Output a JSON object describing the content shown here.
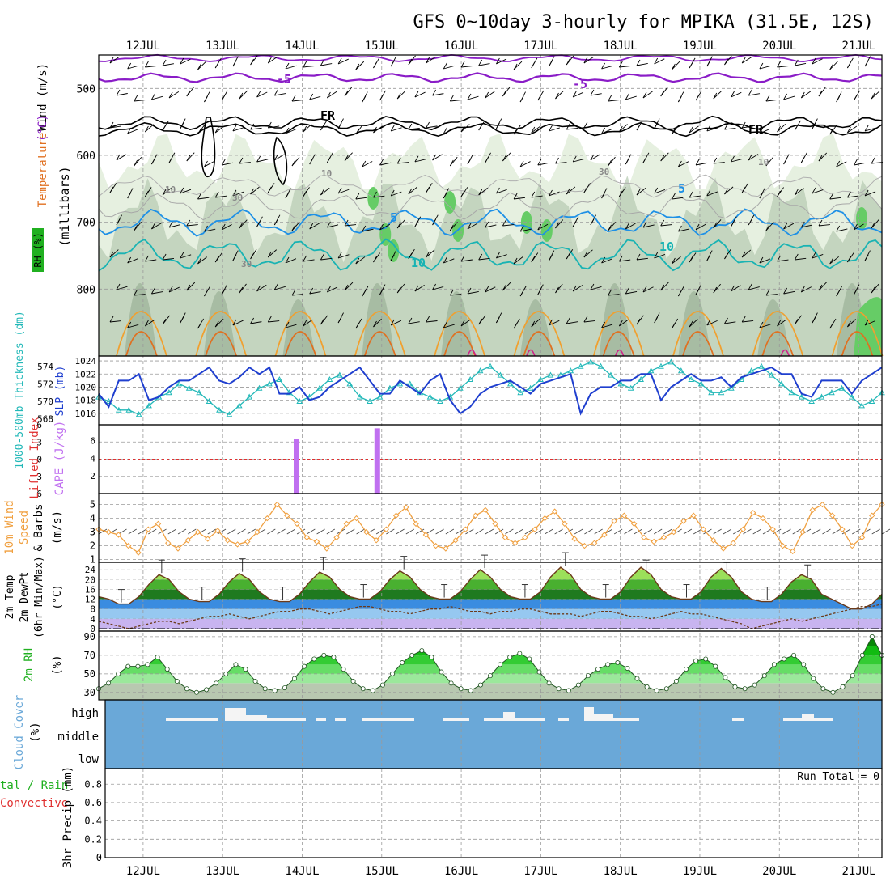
{
  "title": "GFS 0~10day 3-hourly for MPIKA (31.5E, 12S)",
  "colors": {
    "frame": "#000000",
    "grid": "#9a9a9a",
    "rh_light": "#e6f0e0",
    "rh_mid": "#b8ccb4",
    "rh_dark": "#8fa88d",
    "rh_green": "#66cc66",
    "purple": "#8a1cc7",
    "cyan_blue": "#1e90e6",
    "teal": "#19b3b3",
    "orange": "#f0a030",
    "dark_orange": "#e07020",
    "magenta": "#d0208a",
    "slp": "#1f3fcf",
    "thickness": "#22b8b8",
    "cape": "#c070f0",
    "lifted": "#e03030",
    "wind": "#f0a040",
    "temp_line": "#6b3a1a",
    "sky": "#6aa8d8",
    "cloud": "#f4f4f4",
    "green_label": "#20b020"
  },
  "x_axis": {
    "day_labels": [
      "12JUL",
      "13JUL",
      "14JUL",
      "15JUL",
      "16JUL",
      "17JUL",
      "18JUL",
      "19JUL",
      "20JUL",
      "21JUL"
    ],
    "start": 0,
    "end": 9.7,
    "first_day": 0.55
  },
  "panels": {
    "upper": {
      "ylabel_parts": [
        "Wind (m/s)",
        "Temperature",
        "(°C)",
        "RH (%)"
      ],
      "ylabel2": "(millibars)",
      "ticks": [
        500,
        600,
        700,
        800
      ],
      "contour_labels": [
        "-5",
        "-5",
        "FR",
        "FR",
        "5",
        "5",
        "10",
        "10",
        "10",
        "30",
        "30",
        "10",
        "30",
        "10"
      ]
    },
    "slp": {
      "ylabel_left": "1000-500mb Thickness (dm)",
      "ylabel_right": "SLP (mb)",
      "ticks_slp": [
        "1024",
        "1022",
        "1020",
        "1018",
        "1016"
      ],
      "ticks_thk": [
        "574",
        "572",
        "570",
        "568"
      ]
    },
    "cape": {
      "ylabel_left": "Lifted Index",
      "ylabel_right": "CAPE (J/kg)",
      "ticks_li": [
        "6",
        "-3",
        "0",
        "3",
        "6"
      ],
      "ticks_cape": [
        "6",
        "4",
        "2"
      ]
    },
    "wind": {
      "ylabel": [
        "10m Wind",
        "Speed",
        "& Barbs",
        "(m/s)"
      ],
      "ticks": [
        "5",
        "4",
        "3",
        "2",
        "1"
      ]
    },
    "temp": {
      "ylabel": [
        "2m Temp",
        "2m DewPt",
        "(6hr Min/Max)",
        "(°C)"
      ],
      "ticks": [
        "24",
        "20",
        "16",
        "12",
        "8",
        "4",
        "0"
      ]
    },
    "rh": {
      "ylabel": [
        "2m RH",
        "(%)"
      ],
      "ticks": [
        "90",
        "70",
        "50",
        "30"
      ]
    },
    "cloud": {
      "ylabel": [
        "Cloud Cover",
        "(%)"
      ],
      "levels": [
        "high",
        "middle",
        "low"
      ]
    },
    "precip": {
      "ylabel_parts": [
        "tal / Rain",
        "Convective",
        "3hr Precip (mm)"
      ],
      "ticks": [
        "0.8",
        "0.6",
        "0.4",
        "0.2",
        "0"
      ],
      "run_total": "Run Total = 0"
    }
  },
  "chart_data": {
    "type": "line",
    "title": "GFS 0~10day 3-hourly for MPIKA (31.5E, 12S)",
    "x_labels": [
      "12JUL",
      "13JUL",
      "14JUL",
      "15JUL",
      "16JUL",
      "17JUL",
      "18JUL",
      "19JUL",
      "20JUL",
      "21JUL"
    ],
    "slp_mb": [
      1019,
      1017,
      1021,
      1021,
      1022,
      1018,
      1018.5,
      1020,
      1021,
      1021,
      1022,
      1023,
      1021,
      1020.5,
      1021.5,
      1023,
      1022,
      1023,
      1019,
      1019,
      1020,
      1018,
      1018.5,
      1020,
      1021,
      1022,
      1023,
      1021,
      1019,
      1019,
      1021,
      1020,
      1019,
      1021,
      1022,
      1018,
      1016,
      1017,
      1019,
      1020,
      1020.5,
      1021,
      1020,
      1019,
      1020.5,
      1021,
      1021.5,
      1022,
      1016,
      1019,
      1020,
      1020,
      1021,
      1021,
      1022,
      1022,
      1018,
      1020,
      1021,
      1022,
      1021,
      1021,
      1021.5,
      1020,
      1021.5,
      1022,
      1022.5,
      1023,
      1022,
      1022,
      1019,
      1018.5,
      1021,
      1021,
      1021,
      1019,
      1021,
      1022,
      1023
    ],
    "thickness_dm": [
      570.5,
      570,
      569,
      569,
      568.5,
      569.5,
      570.5,
      571,
      572,
      571.5,
      571,
      570,
      569,
      568.5,
      569.5,
      570.5,
      571.5,
      572,
      572.5,
      571,
      570,
      570.5,
      571.5,
      572.5,
      573,
      572,
      570.5,
      570,
      570.5,
      571.5,
      572,
      572,
      571,
      570.5,
      570,
      570.5,
      571.5,
      572.5,
      573.5,
      574,
      573,
      572,
      571,
      571.5,
      572.5,
      573,
      573,
      573.5,
      574,
      574.5,
      574,
      573,
      572,
      571.5,
      572.5,
      573.5,
      574,
      574.5,
      573.5,
      572.5,
      572,
      571,
      571,
      571.5,
      572.5,
      573.5,
      574,
      573,
      572,
      571,
      570.5,
      570,
      570.5,
      571,
      571.5,
      570.5,
      569.5,
      570,
      571
    ],
    "cape_jkg": [
      {
        "day": 2.45,
        "value": 6.2
      },
      {
        "day": 3.45,
        "value": 7.4
      }
    ],
    "wind_speed_ms": [
      3.2,
      3.0,
      2.8,
      2.0,
      1.5,
      3.2,
      3.6,
      2.2,
      1.8,
      2.4,
      3.0,
      2.5,
      3.1,
      2.4,
      2.1,
      2.3,
      3.0,
      4.0,
      5.0,
      4.2,
      3.6,
      2.6,
      2.3,
      1.8,
      2.6,
      3.6,
      4.0,
      3.0,
      2.4,
      3.2,
      4.2,
      4.8,
      3.6,
      2.8,
      2.0,
      1.8,
      2.4,
      3.2,
      4.2,
      4.6,
      3.6,
      2.6,
      2.2,
      2.6,
      3.2,
      4.0,
      4.5,
      3.6,
      2.5,
      2.0,
      2.2,
      2.8,
      3.8,
      4.2,
      3.6,
      2.6,
      2.3,
      2.6,
      3.0,
      3.8,
      4.2,
      3.2,
      2.4,
      1.8,
      2.2,
      3.2,
      4.4,
      4.0,
      3.2,
      2.0,
      1.6,
      3.0,
      4.6,
      5.0,
      4.2,
      3.2,
      2.0,
      2.6,
      4.2,
      5.0
    ],
    "temp_2m_c": [
      13,
      12,
      10,
      10,
      13,
      18,
      22,
      20,
      15,
      12,
      11,
      11,
      14,
      19,
      22.5,
      20,
      15,
      12,
      11,
      11,
      14,
      19,
      23,
      21,
      16,
      13,
      12,
      12,
      15,
      20,
      23.5,
      21,
      16,
      13,
      12,
      12,
      15,
      20,
      24,
      21,
      16,
      13,
      12,
      12,
      15,
      21,
      25,
      22,
      16,
      13,
      12,
      12,
      15,
      21,
      25,
      22,
      16,
      13,
      12,
      12,
      15,
      21,
      24.5,
      21,
      15,
      12,
      11,
      11,
      14,
      19,
      22,
      20,
      14,
      12,
      10,
      8,
      8,
      10,
      14
    ],
    "dewpoint_2m_c": [
      3,
      2,
      1,
      0,
      1,
      2,
      3,
      3,
      2,
      3,
      4,
      5,
      5,
      6,
      5,
      4,
      5,
      6,
      7,
      7,
      8,
      8,
      7,
      6,
      7,
      8,
      9,
      9,
      8,
      7,
      7,
      6,
      7,
      8,
      8,
      9,
      8,
      7,
      7,
      6,
      7,
      7,
      8,
      8,
      7,
      6,
      6,
      6,
      5,
      6,
      7,
      7,
      6,
      5,
      5,
      4,
      5,
      6,
      7,
      6,
      6,
      5,
      4,
      3,
      2,
      0,
      1,
      2,
      3,
      4,
      3,
      4,
      5,
      6,
      7,
      8,
      9,
      9,
      10
    ],
    "rh_2m_pct": [
      34,
      40,
      50,
      58,
      58,
      60,
      68,
      55,
      42,
      34,
      30,
      33,
      40,
      50,
      60,
      55,
      42,
      34,
      32,
      35,
      45,
      58,
      66,
      70,
      68,
      55,
      42,
      34,
      32,
      38,
      50,
      62,
      70,
      75,
      68,
      52,
      40,
      34,
      32,
      38,
      48,
      60,
      68,
      72,
      66,
      52,
      40,
      34,
      32,
      38,
      48,
      55,
      60,
      62,
      56,
      45,
      36,
      32,
      34,
      42,
      55,
      64,
      66,
      58,
      46,
      36,
      34,
      38,
      48,
      60,
      66,
      70,
      60,
      45,
      34,
      30,
      36,
      48,
      70,
      90,
      70
    ],
    "precip_mm": [],
    "run_total": "Run Total = 0"
  }
}
